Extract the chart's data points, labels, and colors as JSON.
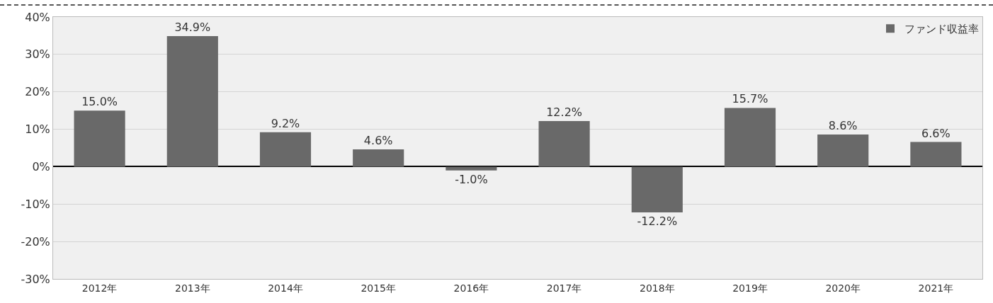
{
  "chart_data": {
    "type": "bar",
    "categories": [
      "2012年",
      "2013年",
      "2014年",
      "2015年",
      "2016年",
      "2017年",
      "2018年",
      "2019年",
      "2020年",
      "2021年"
    ],
    "series": [
      {
        "name": "ファンド収益率",
        "color": "#696969",
        "values": [
          15.0,
          34.9,
          9.2,
          4.6,
          -1.0,
          12.2,
          -12.2,
          15.7,
          8.6,
          6.6
        ],
        "value_labels": [
          "15.0%",
          "34.9%",
          "9.2%",
          "4.6%",
          "-1.0%",
          "12.2%",
          "-12.2%",
          "15.7%",
          "8.6%",
          "6.6%"
        ]
      }
    ],
    "ylim": [
      -30,
      40
    ],
    "yticks": [
      {
        "value": -30,
        "label": "-30%"
      },
      {
        "value": -20,
        "label": "-20%"
      },
      {
        "value": -10,
        "label": "-10%"
      },
      {
        "value": 0,
        "label": "0%"
      },
      {
        "value": 10,
        "label": "10%"
      },
      {
        "value": 20,
        "label": "20%"
      },
      {
        "value": 30,
        "label": "30%"
      },
      {
        "value": 40,
        "label": "40%"
      }
    ],
    "grid": "y",
    "legend": "top right"
  }
}
